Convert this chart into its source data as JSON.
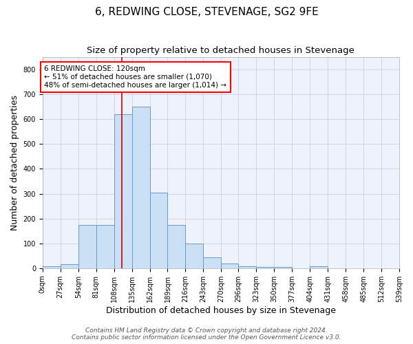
{
  "title": "6, REDWING CLOSE, STEVENAGE, SG2 9FE",
  "subtitle": "Size of property relative to detached houses in Stevenage",
  "xlabel": "Distribution of detached houses by size in Stevenage",
  "ylabel": "Number of detached properties",
  "bin_edges": [
    0,
    27,
    54,
    81,
    108,
    135,
    162,
    189,
    216,
    243,
    270,
    296,
    323,
    350,
    377,
    404,
    431,
    458,
    485,
    512,
    539
  ],
  "bin_counts": [
    8,
    15,
    175,
    175,
    620,
    650,
    305,
    175,
    100,
    43,
    18,
    9,
    6,
    5,
    0,
    8,
    0,
    0,
    0,
    0
  ],
  "bar_facecolor": "#cce0f5",
  "bar_edgecolor": "#6699cc",
  "bar_linewidth": 0.7,
  "grid_color": "#c8d0e0",
  "background_color": "#eef2fa",
  "redline_x": 120,
  "redline_color": "#cc0000",
  "annotation_text": "6 REDWING CLOSE: 120sqm\n← 51% of detached houses are smaller (1,070)\n48% of semi-detached houses are larger (1,014) →",
  "ylim": [
    0,
    850
  ],
  "yticks": [
    0,
    100,
    200,
    300,
    400,
    500,
    600,
    700,
    800
  ],
  "footer_line1": "Contains HM Land Registry data © Crown copyright and database right 2024.",
  "footer_line2": "Contains public sector information licensed under the Open Government Licence v3.0.",
  "title_fontsize": 11,
  "subtitle_fontsize": 9.5,
  "axis_label_fontsize": 9,
  "tick_fontsize": 7,
  "annotation_fontsize": 7.5,
  "footer_fontsize": 6.5
}
